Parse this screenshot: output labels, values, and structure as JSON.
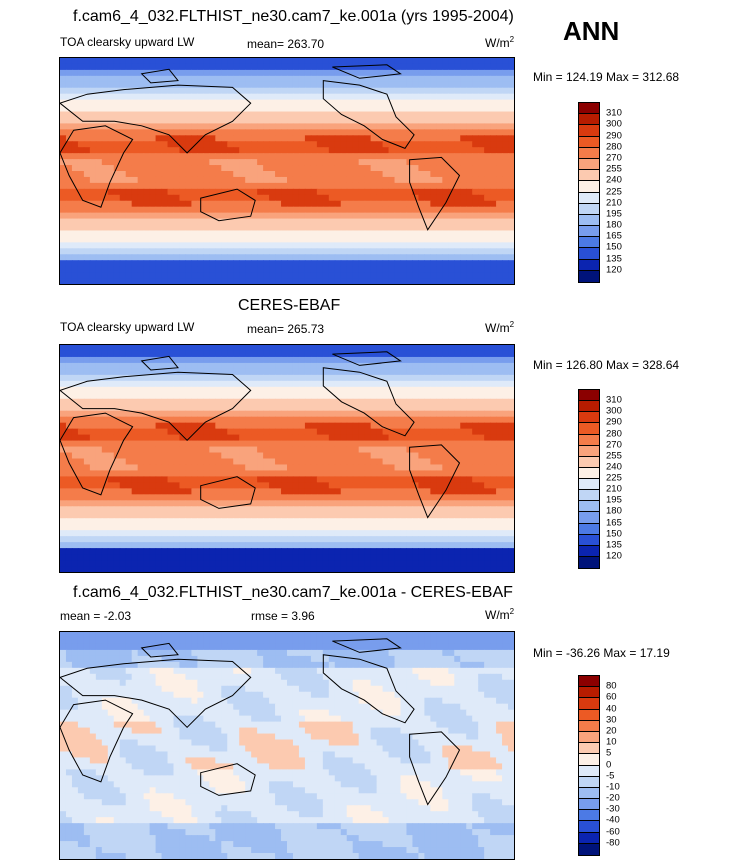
{
  "corner_label": "ANN",
  "panels": [
    {
      "title": "f.cam6_4_032.FLTHIST_ne30.cam7_ke.001a (yrs 1995-2004)",
      "variable": "TOA clearsky upward LW",
      "stat": "mean= 263.70",
      "units_base": "W/m",
      "units_exp": "2",
      "minmax": "Min = 124.19 Max = 312.68",
      "levels": [
        "310",
        "300",
        "290",
        "280",
        "270",
        "255",
        "240",
        "225",
        "210",
        "195",
        "180",
        "165",
        "150",
        "135",
        "120"
      ],
      "colors": [
        "#8b0000",
        "#b71c00",
        "#d93a0f",
        "#ec5a24",
        "#f47c4a",
        "#f9a37c",
        "#fccab0",
        "#fdf0e6",
        "#dfeaf9",
        "#c0d6f5",
        "#9dbdf2",
        "#789ded",
        "#4c7ae5",
        "#2950d6",
        "#0b24b0",
        "#00137a"
      ],
      "field": "lw_model"
    },
    {
      "title": "CERES-EBAF",
      "variable": "TOA clearsky upward LW",
      "stat": "mean= 265.73",
      "units_base": "W/m",
      "units_exp": "2",
      "minmax": "Min = 126.80 Max = 328.64",
      "levels": [
        "310",
        "300",
        "290",
        "280",
        "270",
        "255",
        "240",
        "225",
        "210",
        "195",
        "180",
        "165",
        "150",
        "135",
        "120"
      ],
      "colors": [
        "#8b0000",
        "#b71c00",
        "#d93a0f",
        "#ec5a24",
        "#f47c4a",
        "#f9a37c",
        "#fccab0",
        "#fdf0e6",
        "#dfeaf9",
        "#c0d6f5",
        "#9dbdf2",
        "#789ded",
        "#4c7ae5",
        "#2950d6",
        "#0b24b0",
        "#00137a"
      ],
      "field": "lw_obs"
    },
    {
      "title": "f.cam6_4_032.FLTHIST_ne30.cam7_ke.001a - CERES-EBAF",
      "variable": "mean =  -2.03",
      "stat": "rmse =   3.96",
      "units_base": "W/m",
      "units_exp": "2",
      "minmax": "Min = -36.26 Max =  17.19",
      "levels": [
        "80",
        "60",
        "40",
        "30",
        "20",
        "10",
        "5",
        "0",
        "-5",
        "-10",
        "-20",
        "-30",
        "-40",
        "-60",
        "-80"
      ],
      "colors": [
        "#8b0000",
        "#b71c00",
        "#d93a0f",
        "#ec5a24",
        "#f47c4a",
        "#f9a37c",
        "#fccab0",
        "#fdf0e6",
        "#dfeaf9",
        "#c0d6f5",
        "#9dbdf2",
        "#789ded",
        "#4c7ae5",
        "#2950d6",
        "#0b24b0",
        "#00137a"
      ],
      "field": "diff"
    }
  ]
}
